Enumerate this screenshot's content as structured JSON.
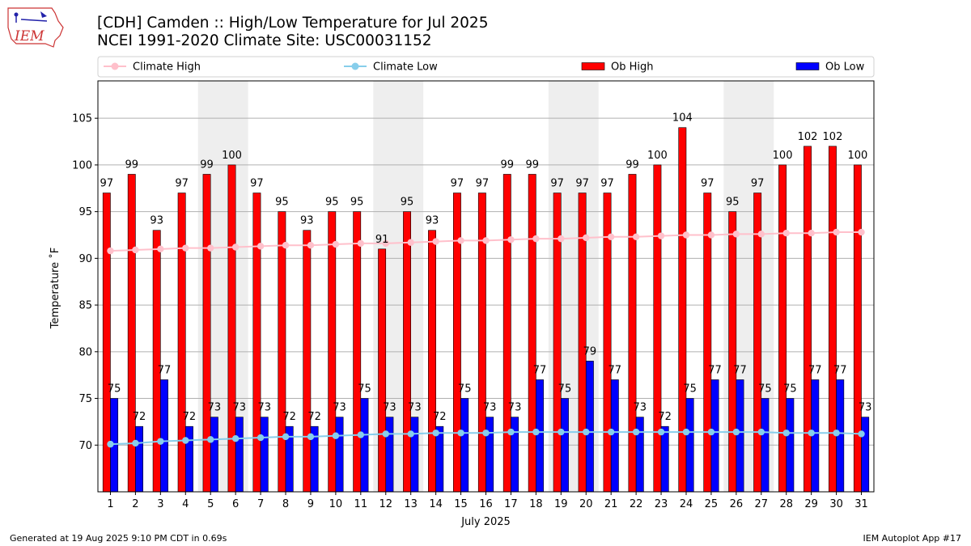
{
  "header": {
    "logo_text": "IEM",
    "title": "[CDH] Camden :: High/Low Temperature for Jul 2025",
    "subtitle": "NCEI 1991-2020 Climate Site: USC00031152"
  },
  "footer": {
    "left": "Generated at 19 Aug 2025 9:10 PM CDT in 0.69s",
    "right": "IEM Autoplot App #17"
  },
  "colors": {
    "ob_high": "#ff0000",
    "ob_low": "#0000ff",
    "climate_high": "#ffc0cb",
    "climate_low": "#87ceeb",
    "weekend_band": "#eeeeee",
    "grid": "#b0b0b0"
  },
  "chart_data": {
    "type": "bar",
    "xlabel": "July 2025",
    "ylabel": "Temperature ˚F",
    "ylim": [
      65,
      109
    ],
    "yticks": [
      70,
      75,
      80,
      85,
      90,
      95,
      100,
      105
    ],
    "grid": "horizontal",
    "legend_placement": "top",
    "weekends": [
      [
        5,
        6
      ],
      [
        12,
        13
      ],
      [
        19,
        20
      ],
      [
        26,
        27
      ]
    ],
    "categories": [
      1,
      2,
      3,
      4,
      5,
      6,
      7,
      8,
      9,
      10,
      11,
      12,
      13,
      14,
      15,
      16,
      17,
      18,
      19,
      20,
      21,
      22,
      23,
      24,
      25,
      26,
      27,
      28,
      29,
      30,
      31
    ],
    "series": [
      {
        "name": "Climate High",
        "kind": "line",
        "values": [
          90.8,
          90.9,
          91.0,
          91.1,
          91.1,
          91.2,
          91.3,
          91.4,
          91.4,
          91.5,
          91.6,
          91.6,
          91.7,
          91.8,
          91.9,
          91.9,
          92.0,
          92.1,
          92.1,
          92.2,
          92.3,
          92.3,
          92.4,
          92.5,
          92.5,
          92.6,
          92.6,
          92.7,
          92.7,
          92.8,
          92.8
        ]
      },
      {
        "name": "Climate Low",
        "kind": "line",
        "values": [
          70.1,
          70.2,
          70.4,
          70.5,
          70.6,
          70.7,
          70.8,
          70.9,
          70.9,
          71.0,
          71.1,
          71.2,
          71.2,
          71.3,
          71.3,
          71.3,
          71.4,
          71.4,
          71.4,
          71.4,
          71.4,
          71.4,
          71.4,
          71.4,
          71.4,
          71.4,
          71.4,
          71.3,
          71.3,
          71.3,
          71.2
        ]
      },
      {
        "name": "Ob High",
        "kind": "bar",
        "values": [
          97,
          99,
          93,
          97,
          99,
          100,
          97,
          95,
          93,
          95,
          95,
          91,
          95,
          93,
          97,
          97,
          99,
          99,
          97,
          97,
          97,
          99,
          100,
          104,
          97,
          95,
          97,
          100,
          102,
          102,
          100
        ]
      },
      {
        "name": "Ob Low",
        "kind": "bar",
        "values": [
          75,
          72,
          77,
          72,
          73,
          73,
          73,
          72,
          72,
          73,
          75,
          73,
          73,
          72,
          75,
          73,
          73,
          77,
          75,
          79,
          77,
          73,
          72,
          75,
          77,
          77,
          75,
          75,
          77,
          77,
          73
        ]
      }
    ]
  }
}
